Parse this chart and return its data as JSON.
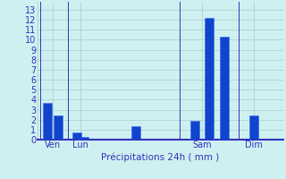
{
  "bar_positions": [
    0.5,
    1.2,
    2.5,
    3.0,
    6.5,
    10.5,
    11.5,
    12.5,
    14.5
  ],
  "bar_values": [
    3.7,
    2.4,
    0.7,
    0.3,
    1.3,
    1.9,
    12.2,
    10.3,
    2.4
  ],
  "bar_color": "#1144cc",
  "bar_edge_color": "#3366ff",
  "xtick_positions": [
    0.85,
    2.75,
    11.0,
    14.5
  ],
  "xtick_labels": [
    "Ven",
    "Lun",
    "Sam",
    "Dim"
  ],
  "vline_positions": [
    0.0,
    1.9,
    9.5,
    13.5
  ],
  "ytick_vals": [
    0,
    1,
    2,
    3,
    4,
    5,
    6,
    7,
    8,
    9,
    10,
    11,
    12,
    13
  ],
  "ylim": [
    0,
    13.8
  ],
  "xlim": [
    -0.2,
    16.5
  ],
  "xlabel": "Précipitations 24h ( mm )",
  "background_color": "#cff0f0",
  "grid_color": "#aacccc",
  "tick_color": "#3333bb",
  "label_color": "#3333bb",
  "bar_width": 0.6,
  "xlabel_fontsize": 7.5,
  "tick_fontsize": 7.0
}
